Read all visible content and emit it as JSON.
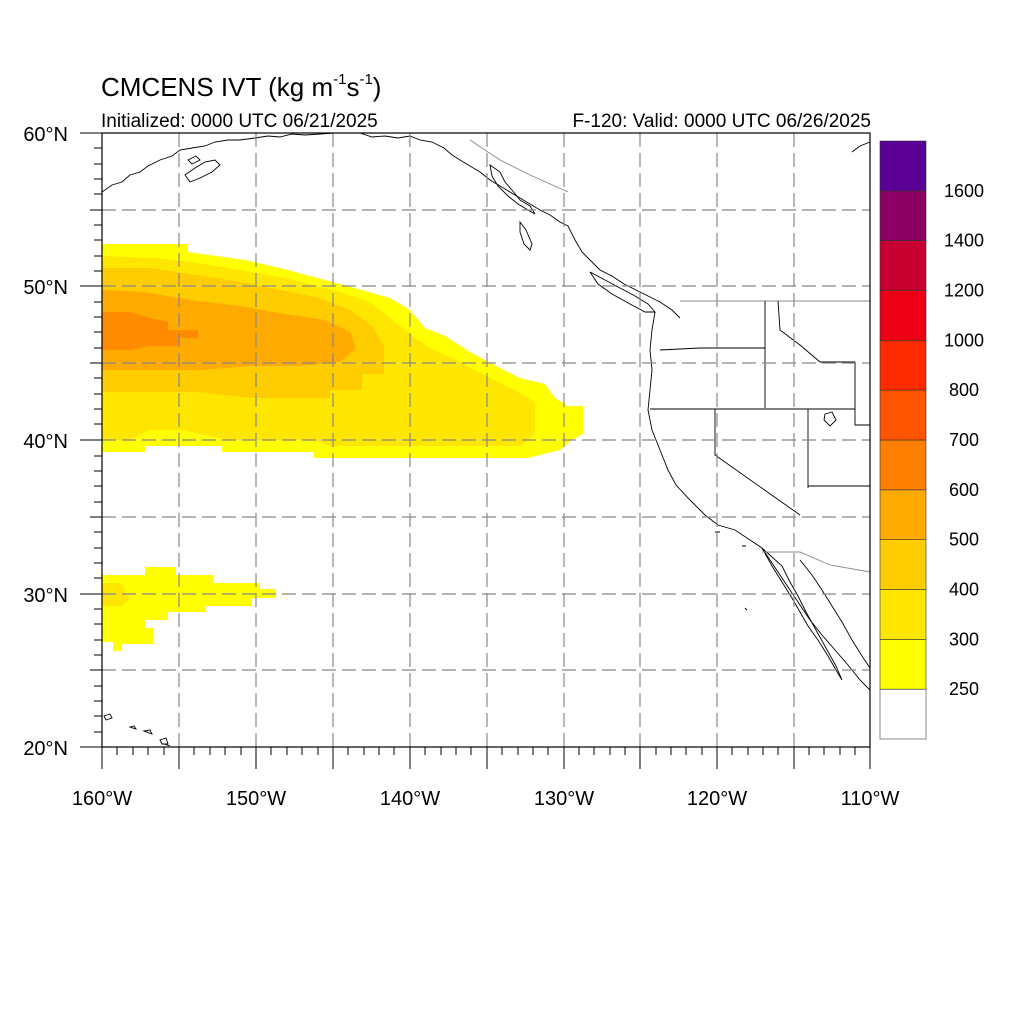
{
  "title": {
    "main": "CMCENS IVT (kg m",
    "exp1": "-1",
    "mid": "s",
    "exp2": "-1",
    "end": ")"
  },
  "subtitle_left": "Initialized: 0000 UTC 06/21/2025",
  "subtitle_right": "F-120: Valid: 0000 UTC 06/26/2025",
  "map": {
    "lon_range": [
      -160,
      -110
    ],
    "lat_range": [
      20,
      60
    ],
    "lon_ticks": [
      {
        "value": -160,
        "label": "160°W"
      },
      {
        "value": -150,
        "label": "150°W"
      },
      {
        "value": -140,
        "label": "140°W"
      },
      {
        "value": -130,
        "label": "130°W"
      },
      {
        "value": -120,
        "label": "120°W"
      },
      {
        "value": -110,
        "label": "110°W"
      }
    ],
    "lat_ticks": [
      {
        "value": 20,
        "label": "20°N"
      },
      {
        "value": 30,
        "label": "30°N"
      },
      {
        "value": 40,
        "label": "40°N"
      },
      {
        "value": 50,
        "label": "50°N"
      },
      {
        "value": 60,
        "label": "60°N"
      }
    ],
    "grid": "dashed every 5°"
  },
  "colorbar": {
    "levels": [
      {
        "label": "250",
        "color": "#ffff00"
      },
      {
        "label": "300",
        "color": "#ffe600"
      },
      {
        "label": "400",
        "color": "#ffcc00"
      },
      {
        "label": "500",
        "color": "#ffaa00"
      },
      {
        "label": "600",
        "color": "#ff8000"
      },
      {
        "label": "700",
        "color": "#ff5500"
      },
      {
        "label": "800",
        "color": "#ff2a00"
      },
      {
        "label": "1000",
        "color": "#ee0014"
      },
      {
        "label": "1200",
        "color": "#c80032"
      },
      {
        "label": "1400",
        "color": "#8c0064"
      },
      {
        "label": "1600",
        "color": "#5a0096"
      }
    ],
    "below_color": "#ffffff",
    "top_color": "#5a0096"
  },
  "ivt_field": {
    "description_levels": [
      "250",
      "300",
      "400",
      "500",
      "600"
    ],
    "plume_main_lon": [
      -160,
      -128
    ],
    "plume_main_lat": [
      39,
      53
    ],
    "plume_south_lon": [
      -160,
      -148
    ],
    "plume_south_lat": [
      26,
      32
    ]
  }
}
